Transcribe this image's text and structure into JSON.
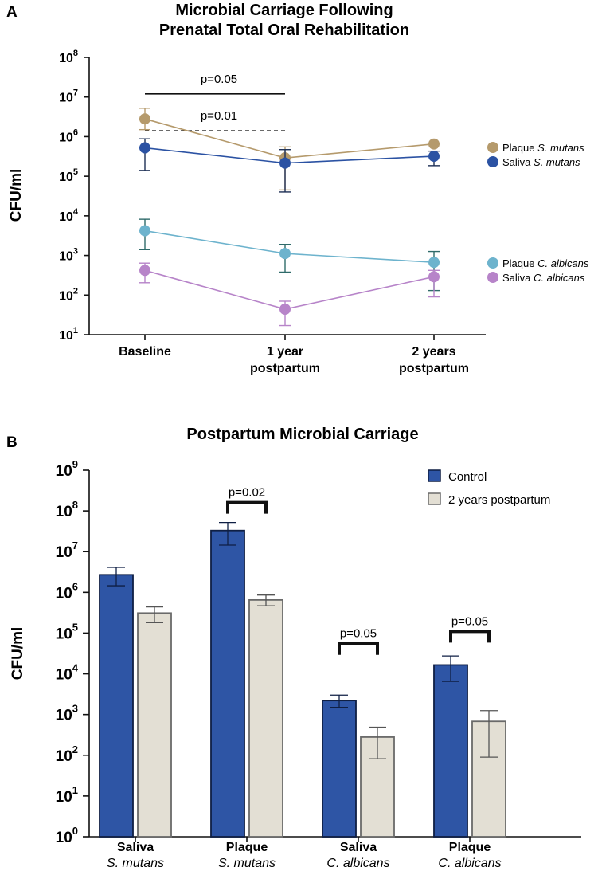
{
  "chart_data": [
    {
      "panel": "A",
      "type": "line",
      "title": "Microbial Carriage Following",
      "title_line2": "Prenatal Total Oral Rehabilitation",
      "ylabel": "CFU/ml",
      "yscale": "log",
      "ylim_exponents": [
        1,
        8
      ],
      "ytick_exponents": [
        "1",
        "2",
        "3",
        "4",
        "5",
        "6",
        "7",
        "8"
      ],
      "ytick_base": "10",
      "categories": [
        {
          "line1": "Baseline",
          "line2": ""
        },
        {
          "line1": "1 year",
          "line2": "postpartum"
        },
        {
          "line1": "2 years",
          "line2": "postpartum"
        }
      ],
      "series": [
        {
          "name": "Plaque",
          "species": "S. mutans",
          "color": "#b59a6c",
          "values": [
            2800000,
            290000,
            650000
          ],
          "err_low": [
            1500000,
            45000,
            null
          ],
          "err_high": [
            5200000,
            550000,
            null
          ]
        },
        {
          "name": "Saliva",
          "species": "S. mutans",
          "color": "#2b52a3",
          "values": [
            520000,
            215000,
            320000
          ],
          "err_low": [
            140000,
            40000,
            185000
          ],
          "err_high": [
            880000,
            470000,
            430000
          ]
        },
        {
          "name": "Plaque",
          "species": "C. albicans",
          "color": "#6db3cd",
          "values": [
            4200,
            1120,
            670
          ],
          "err_low": [
            1400,
            380,
            130
          ],
          "err_high": [
            8200,
            1900,
            1260
          ]
        },
        {
          "name": "Saliva",
          "species": "C. albicans",
          "color": "#b784c9",
          "values": [
            420,
            44,
            290
          ],
          "err_low": [
            205,
            17,
            90
          ],
          "err_high": [
            640,
            70,
            420
          ]
        }
      ],
      "annotations": [
        {
          "text": "p=0.05",
          "style": "solid",
          "y_value": 12000000,
          "from_category": 0,
          "to_category": 1
        },
        {
          "text": "p=0.01",
          "style": "dashed",
          "y_value": 1400000,
          "from_category": 0,
          "to_category": 1
        }
      ],
      "legend_position": "right"
    },
    {
      "panel": "B",
      "type": "bar",
      "title": "Postpartum Microbial Carriage",
      "ylabel": "CFU/ml",
      "yscale": "log",
      "ylim_exponents": [
        0,
        9
      ],
      "ytick_exponents": [
        "0",
        "1",
        "2",
        "3",
        "4",
        "5",
        "6",
        "7",
        "8",
        "9"
      ],
      "ytick_base": "10",
      "categories": [
        {
          "line1": "Saliva",
          "line2": "S. mutans"
        },
        {
          "line1": "Plaque",
          "line2": "S. mutans"
        },
        {
          "line1": "Saliva",
          "line2": "C. albicans"
        },
        {
          "line1": "Plaque",
          "line2": "C. albicans"
        }
      ],
      "series": [
        {
          "name": "Control",
          "color": "#2e55a5",
          "values": [
            2700000,
            33000000,
            2200,
            16500
          ],
          "err_low": [
            1450000,
            14500000,
            1500,
            6500
          ],
          "err_high": [
            4100000,
            52000000,
            3000,
            27500
          ]
        },
        {
          "name": "2 years postpartum",
          "color": "#e3dfd4",
          "values": [
            310000,
            650000,
            280,
            680
          ],
          "err_low": [
            180000,
            470000,
            82,
            90
          ],
          "err_high": [
            440000,
            860000,
            490,
            1250
          ]
        }
      ],
      "annotations": [
        {
          "text": "p=0.02",
          "category": 1,
          "y_value": 160000000
        },
        {
          "text": "p=0.05",
          "category": 2,
          "y_value": 55000
        },
        {
          "text": "p=0.05",
          "category": 3,
          "y_value": 110000
        }
      ],
      "legend_position": "top-right"
    }
  ]
}
